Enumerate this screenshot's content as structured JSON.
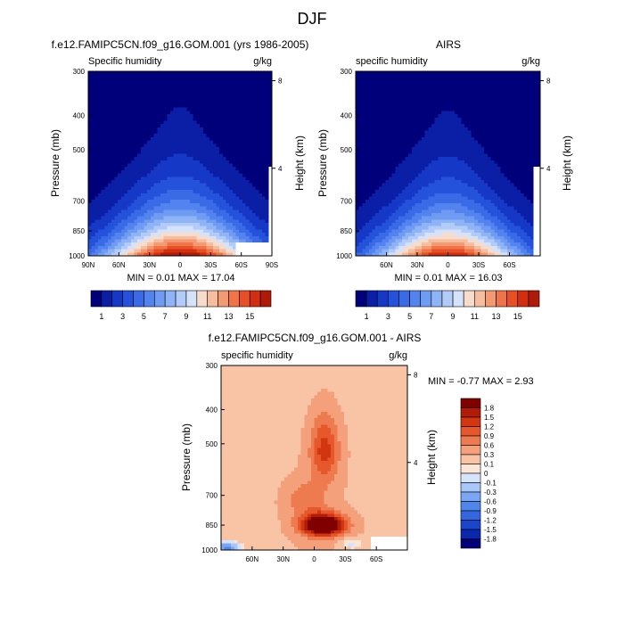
{
  "figure_title": "DJF",
  "chart_data": [
    {
      "type": "contour",
      "title": "f.e12.FAMIPC5CN.f09_g16.GOM.001 (yrs 1986-2005)",
      "subtitle_left": "Specific humidity",
      "subtitle_right": "g/kg",
      "xlabel": "",
      "ylabel": "Pressure (mb)",
      "y2label": "Height (km)",
      "x_ticks": [
        "90N",
        "60N",
        "30N",
        "0",
        "30S",
        "60S",
        "90S"
      ],
      "x_range": [
        90,
        -90
      ],
      "y_ticks": [
        "300",
        "400",
        "500",
        "700",
        "850",
        "1000"
      ],
      "y_range": [
        300,
        1000
      ],
      "y2_ticks": [
        "8",
        "4"
      ],
      "stats": "MIN =  0.01  MAX =  17.04",
      "min": 0.01,
      "max": 17.04,
      "peak_lat": 0,
      "spread": 55,
      "colorbar_labels": [
        "1",
        "3",
        "5",
        "7",
        "9",
        "11",
        "13",
        "15"
      ]
    },
    {
      "type": "contour",
      "title": "AIRS",
      "subtitle_left": "specific humidity",
      "subtitle_right": "g/kg",
      "xlabel": "",
      "ylabel": "Pressure (mb)",
      "y2label": "Height (km)",
      "x_ticks": [
        "60N",
        "30N",
        "0",
        "30S",
        "60S"
      ],
      "x_range": [
        90,
        -90
      ],
      "y_ticks": [
        "300",
        "400",
        "500",
        "700",
        "850",
        "1000"
      ],
      "y_range": [
        300,
        1000
      ],
      "y2_ticks": [
        "8",
        "4"
      ],
      "stats": "MIN =  0.01  MAX =  16.03",
      "min": 0.01,
      "max": 16.03,
      "peak_lat": 0,
      "spread": 52,
      "colorbar_labels": [
        "1",
        "3",
        "5",
        "7",
        "9",
        "11",
        "13",
        "15"
      ]
    },
    {
      "type": "contour",
      "title": "f.e12.FAMIPC5CN.f09_g16.GOM.001 - AIRS",
      "subtitle_left": "specific humidity",
      "subtitle_right": "g/kg",
      "xlabel": "",
      "ylabel": "Pressure (mb)",
      "y2label": "Height (km)",
      "x_ticks": [
        "60N",
        "30N",
        "0",
        "30S",
        "60S"
      ],
      "x_range": [
        90,
        -90
      ],
      "y_ticks": [
        "300",
        "400",
        "500",
        "700",
        "850",
        "1000"
      ],
      "y_range": [
        300,
        1000
      ],
      "y2_ticks": [
        "8",
        "4"
      ],
      "stats": "MIN = -0.77  MAX =   2.93",
      "min": -0.77,
      "max": 2.93,
      "colorbar_labels": [
        "1.8",
        "1.5",
        "1.2",
        "0.9",
        "0.6",
        "0.3",
        "0.1",
        "0",
        "-0.1",
        "-0.3",
        "-0.6",
        "-0.9",
        "-1.2",
        "-1.5",
        "-1.8"
      ]
    }
  ],
  "colors": {
    "humidity_scale": [
      "#00007a",
      "#0b1fa6",
      "#1638c6",
      "#2452db",
      "#3a6ae6",
      "#5283ef",
      "#6f9bf3",
      "#8fb4f6",
      "#b2cbf8",
      "#d4e2fa",
      "#f7dccb",
      "#f6bd9e",
      "#f39a72",
      "#ef7447",
      "#e84f24",
      "#d12f10",
      "#b01a08",
      "#8e0b03",
      "#6e0202"
    ],
    "diff_scale": [
      "#00007a",
      "#0b27ad",
      "#1a46cc",
      "#3366e0",
      "#4e86ec",
      "#7aa6f3",
      "#a8c6f7",
      "#d6e4fb",
      "#fbe6d6",
      "#f8c4a5",
      "#f4a07a",
      "#ee7b4f",
      "#e6572c",
      "#d13611",
      "#b01c06",
      "#800000"
    ],
    "missing": "#ffffff",
    "axis": "#000000"
  }
}
